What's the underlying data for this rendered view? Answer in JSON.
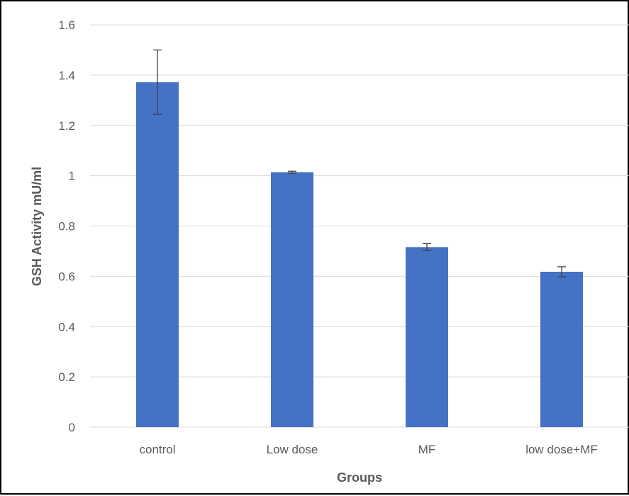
{
  "chart_data": {
    "type": "bar",
    "categories": [
      "control",
      "Low dose",
      "MF",
      "low dose+MF"
    ],
    "values": [
      1.372,
      1.014,
      0.716,
      0.618
    ],
    "errors": [
      0.128,
      0.004,
      0.014,
      0.02
    ],
    "xlabel": "Groups",
    "ylabel": "GSH Activity mU/ml",
    "ylim": [
      0,
      1.6
    ],
    "yticks": [
      "0",
      "0.2",
      "0.4",
      "0.6",
      "0.8",
      "1",
      "1.2",
      "1.4",
      "1.6"
    ],
    "grid": true,
    "legend": "none",
    "bar_color": "#4472C4",
    "grid_color": "#D9D9D9",
    "errorbar_color": "#404040"
  }
}
